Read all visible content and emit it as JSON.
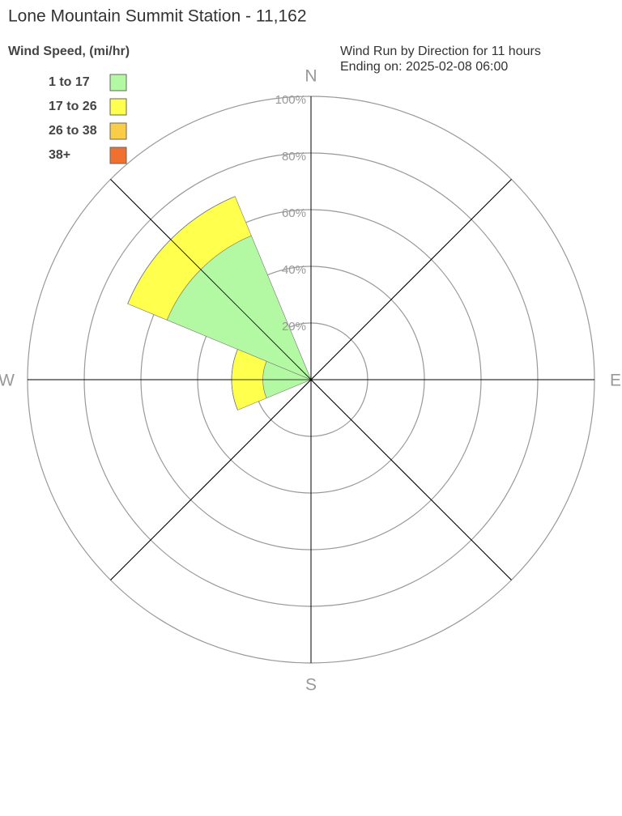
{
  "chart_data": {
    "type": "windrose",
    "title": "Lone Mountain Summit Station - 11,162",
    "legend_title": "Wind Speed, (mi/hr)",
    "subtitle": [
      "Wind Run by Direction for 11 hours",
      "Ending on: 2025-02-08 06:00"
    ],
    "compass": [
      {
        "value": 0,
        "label": "N"
      },
      {
        "value": 90,
        "label": "E"
      },
      {
        "value": 180,
        "label": "S"
      },
      {
        "value": 270,
        "label": "W"
      }
    ],
    "x": [
      0,
      45,
      90,
      135,
      180,
      225,
      270,
      315
    ],
    "series": [
      {
        "name": "1 to 17",
        "color": "#b3f9a3",
        "values": [
          0,
          0,
          0,
          0,
          0,
          0,
          17,
          55
        ]
      },
      {
        "name": "17 to 26",
        "color": "#ffff4d",
        "values": [
          0,
          0,
          0,
          0,
          0,
          0,
          11,
          15
        ]
      },
      {
        "name": "26 to 38",
        "color": "#f9cd47",
        "values": [
          0,
          0,
          0,
          0,
          0,
          0,
          0,
          0
        ]
      },
      {
        "name": "38+",
        "color": "#f07030",
        "values": [
          0,
          0,
          0,
          0,
          0,
          0,
          0,
          0
        ]
      }
    ],
    "rlim": [
      0,
      100
    ],
    "rticks": [
      {
        "value": 20,
        "label": "20%"
      },
      {
        "value": 40,
        "label": "40%"
      },
      {
        "value": 60,
        "label": "60%"
      },
      {
        "value": 80,
        "label": "80%"
      },
      {
        "value": 100,
        "label": "100%"
      }
    ]
  }
}
